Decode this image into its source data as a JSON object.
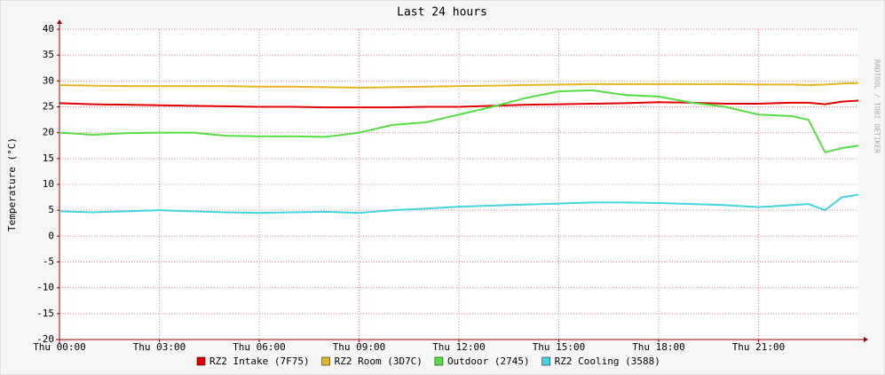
{
  "chart_data": {
    "type": "line",
    "title": "Last 24 hours",
    "y_label": "Temperature (°C)",
    "watermark": "RRDTOOL / TOBI OETIKER",
    "x": [
      0,
      1,
      2,
      3,
      4,
      5,
      6,
      7,
      8,
      9,
      10,
      11,
      12,
      13,
      14,
      15,
      16,
      17,
      18,
      19,
      20,
      21,
      22,
      22.5,
      23,
      23.5,
      24
    ],
    "series": [
      {
        "name": "RZ2 Intake (7F75)",
        "color": "#e00000",
        "values": [
          25.7,
          25.5,
          25.4,
          25.3,
          25.2,
          25.1,
          25.0,
          25.0,
          24.9,
          24.9,
          24.9,
          25.0,
          25.0,
          25.2,
          25.4,
          25.5,
          25.6,
          25.7,
          25.9,
          25.8,
          25.6,
          25.6,
          25.8,
          25.8,
          25.5,
          26.0,
          26.2
        ]
      },
      {
        "name": "RZ2 Room (3D7C)",
        "color": "#e5b422",
        "values": [
          29.2,
          29.1,
          29.0,
          29.0,
          29.0,
          29.0,
          28.9,
          28.9,
          28.8,
          28.7,
          28.8,
          28.9,
          29.0,
          29.1,
          29.2,
          29.3,
          29.4,
          29.4,
          29.4,
          29.4,
          29.4,
          29.3,
          29.3,
          29.2,
          29.3,
          29.5,
          29.6
        ]
      },
      {
        "name": "Outdoor (2745)",
        "color": "#55dd44",
        "values": [
          20.0,
          19.6,
          19.9,
          20.0,
          20.0,
          19.4,
          19.3,
          19.3,
          19.2,
          20.0,
          21.5,
          22.0,
          23.5,
          25.0,
          26.7,
          28.0,
          28.2,
          27.3,
          27.0,
          25.8,
          25.0,
          23.5,
          23.2,
          22.5,
          16.2,
          17.0,
          17.5
        ]
      },
      {
        "name": "RZ2 Cooling (3588)",
        "color": "#44d4dd",
        "values": [
          4.8,
          4.6,
          4.8,
          5.0,
          4.8,
          4.6,
          4.5,
          4.6,
          4.7,
          4.5,
          5.0,
          5.3,
          5.7,
          5.9,
          6.1,
          6.3,
          6.5,
          6.5,
          6.4,
          6.2,
          6.0,
          5.6,
          6.0,
          6.2,
          5.0,
          7.5,
          8.0
        ]
      }
    ],
    "xlim": [
      0,
      24
    ],
    "xticks": [
      {
        "value": 0,
        "label": "Thu 00:00"
      },
      {
        "value": 3,
        "label": "Thu 03:00"
      },
      {
        "value": 6,
        "label": "Thu 06:00"
      },
      {
        "value": 9,
        "label": "Thu 09:00"
      },
      {
        "value": 12,
        "label": "Thu 12:00"
      },
      {
        "value": 15,
        "label": "Thu 15:00"
      },
      {
        "value": 18,
        "label": "Thu 18:00"
      },
      {
        "value": 21,
        "label": "Thu 21:00"
      }
    ],
    "ylim": [
      -20,
      40
    ],
    "yticks": [
      -20,
      -15,
      -10,
      -5,
      0,
      5,
      10,
      15,
      20,
      25,
      30,
      35,
      40
    ],
    "grid": true,
    "legend": "bottom"
  }
}
